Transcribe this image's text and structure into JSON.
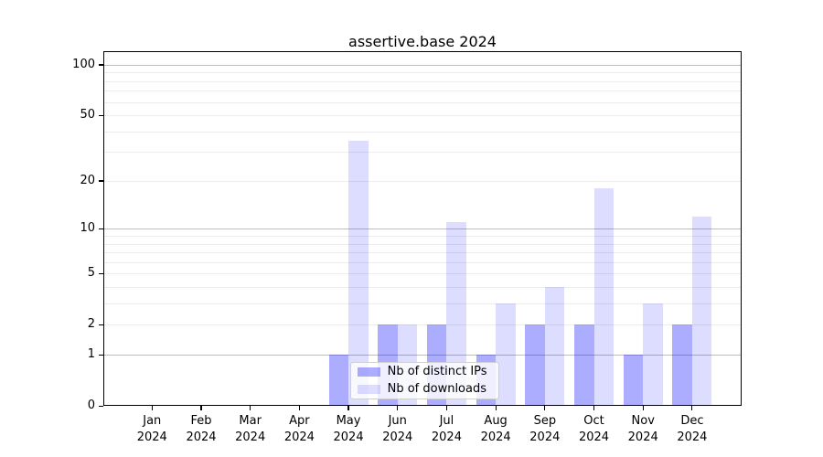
{
  "chart_data": {
    "type": "bar",
    "title": "assertive.base 2024",
    "categories": [
      "Jan",
      "Feb",
      "Mar",
      "Apr",
      "May",
      "Jun",
      "Jul",
      "Aug",
      "Sep",
      "Oct",
      "Nov",
      "Dec"
    ],
    "x_year_label": "2024",
    "series": [
      {
        "name": "Nb of distinct IPs",
        "color": "rgba(0,0,255,0.32)",
        "values": [
          0,
          0,
          0,
          0,
          1,
          2,
          2,
          1,
          2,
          2,
          1,
          2
        ]
      },
      {
        "name": "Nb of downloads",
        "color": "rgba(0,0,255,0.135)",
        "values": [
          0,
          0,
          0,
          0,
          35,
          2,
          11,
          3,
          4,
          18,
          3,
          12
        ]
      }
    ],
    "y_axis": {
      "scale": "log1p",
      "tick_values": [
        100,
        50,
        20,
        10,
        5,
        2,
        1,
        0
      ],
      "major_grid_values": [
        1,
        10,
        100
      ],
      "minor_grid_values": [
        2,
        3,
        4,
        5,
        6,
        7,
        8,
        9,
        20,
        30,
        40,
        50,
        60,
        70,
        80,
        90
      ],
      "range": [
        0,
        121
      ]
    },
    "grid": {
      "major_color": "#bdbdbd",
      "minor_color": "#ececec"
    },
    "legend": {
      "position": "lower center"
    },
    "colors": {
      "axis": "#000000",
      "background": "#ffffff"
    }
  }
}
